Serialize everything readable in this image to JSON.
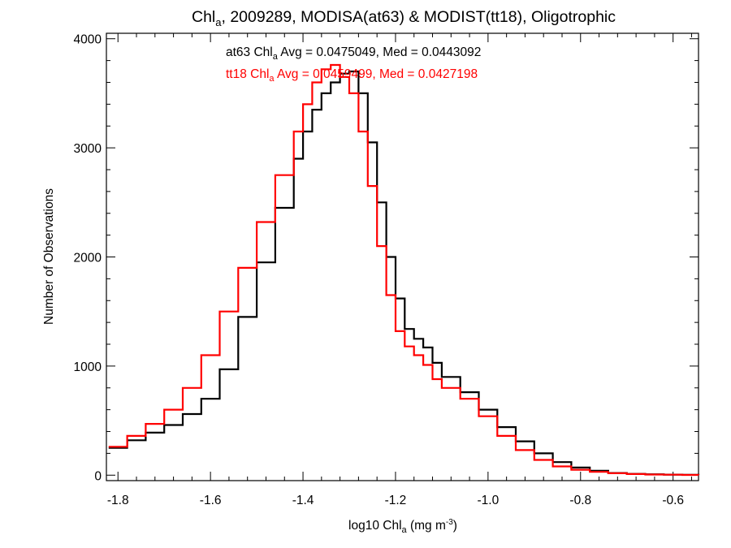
{
  "chart_data": {
    "type": "line",
    "title": {
      "main": "Chl",
      "main_sub": "a",
      "rest": ", 2009289, MODISA(at63) & MODIST(tt18), Oligotrophic"
    },
    "xlabel": {
      "pre": "log10 Chl",
      "sub": "a",
      "mid": " (mg m",
      "sup": "-3",
      "post": ")"
    },
    "ylabel": "Number of Observations",
    "xlim": [
      -1.825,
      -0.545
    ],
    "ylim": [
      -50,
      4050
    ],
    "xticks": [
      -1.8,
      -1.6,
      -1.4,
      -1.2,
      -1.0,
      -0.8,
      -0.6
    ],
    "xtick_labels": [
      "-1.8",
      "-1.6",
      "-1.4",
      "-1.2",
      "-1.0",
      "-0.8",
      "-0.6"
    ],
    "yticks": [
      0,
      1000,
      2000,
      3000,
      4000
    ],
    "ytick_labels": [
      "0",
      "1000",
      "2000",
      "3000",
      "4000"
    ],
    "grid": false,
    "legend": "top-center",
    "series": [
      {
        "name": "at63",
        "color": "#000000",
        "label": {
          "pre": "at63 Chl",
          "sub": "a",
          "post": " Avg = 0.0475049, Med = 0.0443092"
        },
        "x": [
          -1.82,
          -1.78,
          -1.74,
          -1.7,
          -1.66,
          -1.62,
          -1.58,
          -1.54,
          -1.5,
          -1.46,
          -1.42,
          -1.4,
          -1.38,
          -1.36,
          -1.34,
          -1.32,
          -1.3,
          -1.28,
          -1.26,
          -1.24,
          -1.22,
          -1.2,
          -1.18,
          -1.16,
          -1.14,
          -1.12,
          -1.1,
          -1.06,
          -1.02,
          -0.98,
          -0.94,
          -0.9,
          -0.86,
          -0.82,
          -0.78,
          -0.74,
          -0.7,
          -0.66,
          -0.62,
          -0.58,
          -0.545
        ],
        "y": [
          250,
          320,
          390,
          460,
          560,
          700,
          970,
          1450,
          1950,
          2450,
          2900,
          3150,
          3350,
          3500,
          3600,
          3680,
          3700,
          3500,
          3050,
          2500,
          2000,
          1620,
          1340,
          1250,
          1170,
          1030,
          900,
          760,
          600,
          440,
          310,
          200,
          120,
          70,
          40,
          20,
          12,
          8,
          5,
          3,
          2
        ]
      },
      {
        "name": "tt18",
        "color": "#ff0000",
        "label": {
          "pre": "tt18 Chl",
          "sub": "a",
          "post": " Avg = 0.0459499, Med = 0.0427198"
        },
        "x": [
          -1.82,
          -1.78,
          -1.74,
          -1.7,
          -1.66,
          -1.62,
          -1.58,
          -1.54,
          -1.5,
          -1.46,
          -1.42,
          -1.4,
          -1.38,
          -1.36,
          -1.34,
          -1.32,
          -1.3,
          -1.28,
          -1.26,
          -1.24,
          -1.22,
          -1.2,
          -1.18,
          -1.16,
          -1.14,
          -1.12,
          -1.1,
          -1.06,
          -1.02,
          -0.98,
          -0.94,
          -0.9,
          -0.86,
          -0.82,
          -0.78,
          -0.74,
          -0.7,
          -0.66,
          -0.62,
          -0.58,
          -0.545
        ],
        "y": [
          260,
          360,
          470,
          600,
          800,
          1100,
          1500,
          1900,
          2320,
          2750,
          3150,
          3400,
          3600,
          3720,
          3760,
          3650,
          3500,
          3150,
          2650,
          2100,
          1650,
          1320,
          1180,
          1100,
          1010,
          880,
          800,
          700,
          540,
          360,
          230,
          140,
          80,
          50,
          30,
          18,
          10,
          6,
          4,
          2,
          1
        ]
      }
    ]
  }
}
